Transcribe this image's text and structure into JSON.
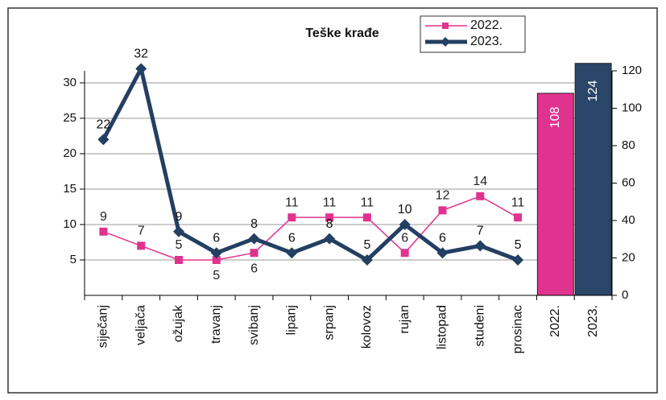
{
  "chart_data": {
    "type": "line",
    "title": "Teške krađe",
    "categories": [
      "siječanj",
      "veljača",
      "ožujak",
      "travanj",
      "svibanj",
      "lipanj",
      "srpanj",
      "kolovoz",
      "rujan",
      "listopad",
      "studeni",
      "prosinac"
    ],
    "series": [
      {
        "name": "2022.",
        "color": "#e0338f",
        "values": [
          9,
          7,
          5,
          5,
          6,
          11,
          11,
          11,
          6,
          12,
          14,
          11
        ]
      },
      {
        "name": "2023.",
        "color": "#233f62",
        "values": [
          22,
          32,
          9,
          6,
          8,
          6,
          8,
          5,
          10,
          6,
          7,
          5
        ]
      }
    ],
    "bars": {
      "categories": [
        "2022.",
        "2023."
      ],
      "values": [
        108,
        124
      ],
      "colors": [
        "#e0338f",
        "#2a4668"
      ],
      "axis": "y2"
    },
    "ylim": [
      0,
      31.7
    ],
    "yticks": [
      5,
      10,
      15,
      20,
      25,
      30
    ],
    "y2lim": [
      0,
      120
    ],
    "y2ticks": [
      0,
      20,
      40,
      60,
      80,
      100,
      120
    ],
    "grid": true
  }
}
